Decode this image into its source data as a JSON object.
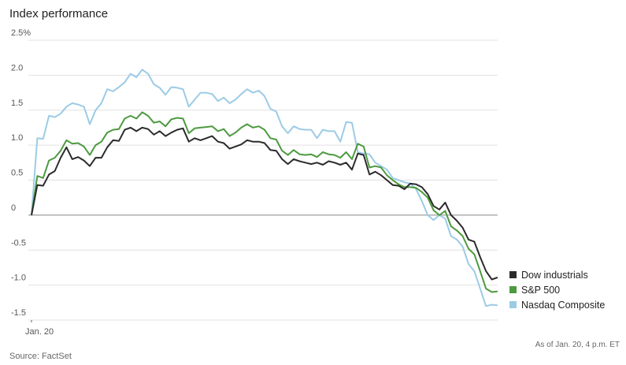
{
  "chart_data": {
    "type": "line",
    "title": "Index performance",
    "source": "Source: FactSet",
    "note": "As of Jan. 20, 4 p.m. ET",
    "categories": [
      "Jan. 20",
      null,
      null,
      null,
      null,
      null,
      null,
      null,
      null,
      null,
      null,
      null,
      null,
      null,
      null,
      null,
      null,
      null,
      null,
      null,
      null,
      null,
      null,
      null,
      null,
      null,
      null,
      null,
      null,
      null,
      null,
      null,
      null,
      null,
      null,
      null,
      null,
      null,
      null,
      null,
      null,
      null,
      null,
      null,
      null,
      null,
      null,
      null,
      null,
      null,
      null,
      null,
      null,
      null,
      null,
      null,
      null,
      null,
      null,
      null,
      null,
      null,
      null,
      null,
      null,
      null,
      null,
      null,
      null,
      null,
      null,
      null,
      null,
      null,
      null,
      null,
      null,
      null,
      null,
      null,
      null
    ],
    "ylim": [
      -1.5,
      2.5
    ],
    "yticks": [
      {
        "value": 2.5,
        "label": "2.5%"
      },
      {
        "value": 2.0,
        "label": "2.0"
      },
      1.5,
      {
        "value": 1.0,
        "label": "1.0"
      },
      0.5,
      0,
      -0.5,
      {
        "value": -1.0,
        "label": "-1.0"
      },
      -1.5
    ],
    "grid": true,
    "legend": "right",
    "series": [
      {
        "name": "Dow industrials",
        "color": "#2b2b2b",
        "values": [
          0,
          0.43,
          0.42,
          0.58,
          0.63,
          0.82,
          0.97,
          0.8,
          0.83,
          0.78,
          0.7,
          0.82,
          0.82,
          0.97,
          1.07,
          1.06,
          1.22,
          1.25,
          1.2,
          1.25,
          1.23,
          1.15,
          1.2,
          1.13,
          1.18,
          1.22,
          1.24,
          1.05,
          1.1,
          1.07,
          1.1,
          1.13,
          1.05,
          1.03,
          0.95,
          0.98,
          1.01,
          1.07,
          1.05,
          1.05,
          1.03,
          0.93,
          0.92,
          0.8,
          0.73,
          0.8,
          0.77,
          0.75,
          0.73,
          0.75,
          0.72,
          0.77,
          0.75,
          0.72,
          0.75,
          0.65,
          0.88,
          0.86,
          0.58,
          0.62,
          0.57,
          0.5,
          0.43,
          0.42,
          0.37,
          0.45,
          0.44,
          0.4,
          0.3,
          0.13,
          0.08,
          0.18,
          0.0,
          -0.08,
          -0.18,
          -0.35,
          -0.38,
          -0.6,
          -0.8,
          -0.92,
          -0.89
        ]
      },
      {
        "name": "S&P 500",
        "color": "#4d9a3f",
        "values": [
          0,
          0.56,
          0.53,
          0.78,
          0.82,
          0.92,
          1.07,
          1.02,
          1.03,
          0.98,
          0.86,
          1.0,
          1.05,
          1.18,
          1.22,
          1.23,
          1.38,
          1.42,
          1.38,
          1.47,
          1.42,
          1.32,
          1.34,
          1.27,
          1.37,
          1.39,
          1.38,
          1.17,
          1.24,
          1.25,
          1.26,
          1.27,
          1.2,
          1.23,
          1.13,
          1.18,
          1.25,
          1.3,
          1.25,
          1.27,
          1.22,
          1.1,
          1.08,
          0.92,
          0.86,
          0.93,
          0.87,
          0.86,
          0.87,
          0.83,
          0.9,
          0.87,
          0.86,
          0.82,
          0.9,
          0.8,
          1.02,
          0.98,
          0.68,
          0.7,
          0.68,
          0.57,
          0.5,
          0.44,
          0.4,
          0.4,
          0.39,
          0.33,
          0.25,
          0.07,
          0.0,
          0.06,
          -0.16,
          -0.22,
          -0.3,
          -0.48,
          -0.56,
          -0.8,
          -1.05,
          -1.1,
          -1.09
        ]
      },
      {
        "name": "Nasdaq Composite",
        "color": "#9ccbe6",
        "values": [
          0,
          1.1,
          1.09,
          1.42,
          1.4,
          1.45,
          1.55,
          1.6,
          1.58,
          1.55,
          1.3,
          1.5,
          1.6,
          1.8,
          1.77,
          1.83,
          1.9,
          2.02,
          1.97,
          2.08,
          2.02,
          1.87,
          1.82,
          1.72,
          1.83,
          1.82,
          1.8,
          1.55,
          1.65,
          1.75,
          1.75,
          1.73,
          1.63,
          1.68,
          1.6,
          1.65,
          1.73,
          1.8,
          1.75,
          1.78,
          1.7,
          1.52,
          1.48,
          1.27,
          1.17,
          1.27,
          1.23,
          1.22,
          1.22,
          1.1,
          1.22,
          1.2,
          1.2,
          1.05,
          1.33,
          1.32,
          0.9,
          0.88,
          0.87,
          0.75,
          0.7,
          0.65,
          0.53,
          0.5,
          0.47,
          0.45,
          0.37,
          0.2,
          0.0,
          -0.07,
          0.0,
          -0.05,
          -0.3,
          -0.35,
          -0.45,
          -0.7,
          -0.8,
          -1.05,
          -1.3,
          -1.28,
          -1.29
        ]
      }
    ]
  }
}
